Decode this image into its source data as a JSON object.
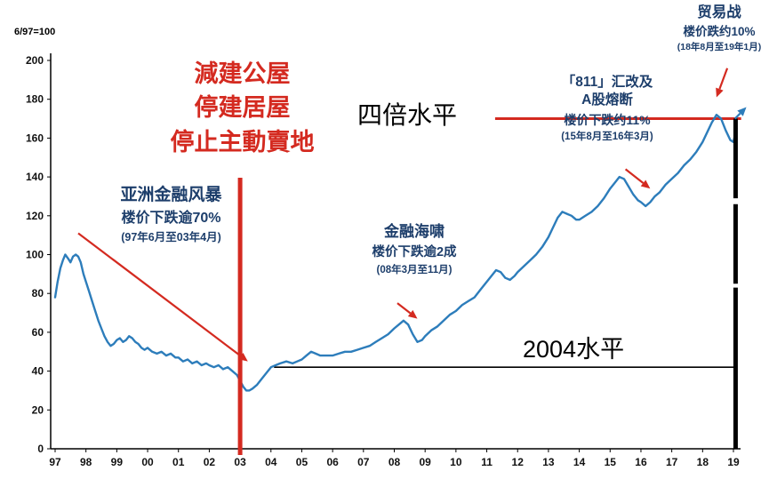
{
  "chart_data": {
    "type": "line",
    "title": "",
    "base_note": "6/97=100",
    "x_ticks": [
      "97",
      "98",
      "99",
      "00",
      "01",
      "02",
      "03",
      "04",
      "05",
      "06",
      "07",
      "08",
      "09",
      "10",
      "11",
      "12",
      "13",
      "14",
      "15",
      "16",
      "17",
      "18",
      "19"
    ],
    "y_ticks": [
      0,
      20,
      40,
      60,
      80,
      100,
      120,
      140,
      160,
      180,
      200
    ],
    "ylim": [
      0,
      200
    ],
    "grid": false,
    "series": [
      {
        "name": "home-price-index",
        "color": "#2d7dbb",
        "points": [
          [
            1997.0,
            78
          ],
          [
            1997.08,
            86
          ],
          [
            1997.17,
            93
          ],
          [
            1997.25,
            97
          ],
          [
            1997.33,
            100
          ],
          [
            1997.42,
            98
          ],
          [
            1997.5,
            96
          ],
          [
            1997.58,
            99
          ],
          [
            1997.67,
            100
          ],
          [
            1997.75,
            99
          ],
          [
            1997.83,
            96
          ],
          [
            1997.92,
            90
          ],
          [
            1998.0,
            86
          ],
          [
            1998.1,
            81
          ],
          [
            1998.2,
            76
          ],
          [
            1998.3,
            71
          ],
          [
            1998.4,
            66
          ],
          [
            1998.5,
            62
          ],
          [
            1998.6,
            58
          ],
          [
            1998.7,
            55
          ],
          [
            1998.8,
            53
          ],
          [
            1998.9,
            54
          ],
          [
            1999.0,
            56
          ],
          [
            1999.1,
            57
          ],
          [
            1999.2,
            55
          ],
          [
            1999.3,
            56
          ],
          [
            1999.4,
            58
          ],
          [
            1999.5,
            57
          ],
          [
            1999.6,
            55
          ],
          [
            1999.7,
            54
          ],
          [
            1999.8,
            52
          ],
          [
            1999.9,
            51
          ],
          [
            2000.0,
            52
          ],
          [
            2000.15,
            50
          ],
          [
            2000.3,
            49
          ],
          [
            2000.45,
            50
          ],
          [
            2000.6,
            48
          ],
          [
            2000.75,
            49
          ],
          [
            2000.9,
            47
          ],
          [
            2001.0,
            47
          ],
          [
            2001.15,
            45
          ],
          [
            2001.3,
            46
          ],
          [
            2001.45,
            44
          ],
          [
            2001.6,
            45
          ],
          [
            2001.75,
            43
          ],
          [
            2001.9,
            44
          ],
          [
            2002.0,
            43
          ],
          [
            2002.15,
            42
          ],
          [
            2002.3,
            43
          ],
          [
            2002.45,
            41
          ],
          [
            2002.6,
            42
          ],
          [
            2002.75,
            40
          ],
          [
            2002.9,
            38
          ],
          [
            2003.0,
            35
          ],
          [
            2003.1,
            32
          ],
          [
            2003.2,
            30
          ],
          [
            2003.3,
            30
          ],
          [
            2003.4,
            31
          ],
          [
            2003.55,
            33
          ],
          [
            2003.7,
            36
          ],
          [
            2003.85,
            39
          ],
          [
            2004.0,
            42
          ],
          [
            2004.15,
            43
          ],
          [
            2004.3,
            44
          ],
          [
            2004.5,
            45
          ],
          [
            2004.7,
            44
          ],
          [
            2004.85,
            45
          ],
          [
            2005.0,
            46
          ],
          [
            2005.15,
            48
          ],
          [
            2005.3,
            50
          ],
          [
            2005.45,
            49
          ],
          [
            2005.6,
            48
          ],
          [
            2005.8,
            48
          ],
          [
            2006.0,
            48
          ],
          [
            2006.2,
            49
          ],
          [
            2006.4,
            50
          ],
          [
            2006.6,
            50
          ],
          [
            2006.8,
            51
          ],
          [
            2007.0,
            52
          ],
          [
            2007.2,
            53
          ],
          [
            2007.4,
            55
          ],
          [
            2007.6,
            57
          ],
          [
            2007.8,
            59
          ],
          [
            2008.0,
            62
          ],
          [
            2008.15,
            64
          ],
          [
            2008.3,
            66
          ],
          [
            2008.45,
            64
          ],
          [
            2008.6,
            59
          ],
          [
            2008.75,
            55
          ],
          [
            2008.9,
            56
          ],
          [
            2009.0,
            58
          ],
          [
            2009.2,
            61
          ],
          [
            2009.4,
            63
          ],
          [
            2009.6,
            66
          ],
          [
            2009.8,
            69
          ],
          [
            2010.0,
            71
          ],
          [
            2010.2,
            74
          ],
          [
            2010.4,
            76
          ],
          [
            2010.6,
            78
          ],
          [
            2010.8,
            82
          ],
          [
            2011.0,
            86
          ],
          [
            2011.15,
            89
          ],
          [
            2011.3,
            92
          ],
          [
            2011.45,
            91
          ],
          [
            2011.6,
            88
          ],
          [
            2011.75,
            87
          ],
          [
            2011.9,
            89
          ],
          [
            2012.0,
            91
          ],
          [
            2012.2,
            94
          ],
          [
            2012.4,
            97
          ],
          [
            2012.6,
            100
          ],
          [
            2012.8,
            104
          ],
          [
            2013.0,
            109
          ],
          [
            2013.15,
            114
          ],
          [
            2013.3,
            119
          ],
          [
            2013.45,
            122
          ],
          [
            2013.6,
            121
          ],
          [
            2013.75,
            120
          ],
          [
            2013.9,
            118
          ],
          [
            2014.0,
            118
          ],
          [
            2014.2,
            120
          ],
          [
            2014.4,
            122
          ],
          [
            2014.6,
            125
          ],
          [
            2014.8,
            129
          ],
          [
            2015.0,
            134
          ],
          [
            2015.15,
            137
          ],
          [
            2015.3,
            140
          ],
          [
            2015.45,
            139
          ],
          [
            2015.6,
            135
          ],
          [
            2015.75,
            131
          ],
          [
            2015.9,
            128
          ],
          [
            2016.0,
            127
          ],
          [
            2016.15,
            125
          ],
          [
            2016.3,
            127
          ],
          [
            2016.45,
            130
          ],
          [
            2016.6,
            132
          ],
          [
            2016.8,
            136
          ],
          [
            2017.0,
            139
          ],
          [
            2017.2,
            142
          ],
          [
            2017.4,
            146
          ],
          [
            2017.6,
            149
          ],
          [
            2017.8,
            153
          ],
          [
            2018.0,
            158
          ],
          [
            2018.15,
            163
          ],
          [
            2018.3,
            168
          ],
          [
            2018.45,
            172
          ],
          [
            2018.6,
            170
          ],
          [
            2018.75,
            164
          ],
          [
            2018.9,
            159
          ],
          [
            2019.0,
            158
          ],
          [
            2019.1,
            165
          ]
        ]
      }
    ],
    "ref_lines": [
      {
        "name": "four-times-level-line",
        "label": "四倍水平",
        "value": 170,
        "from_year": 2011.27,
        "to_year": 2019.25,
        "color": "#d42a20",
        "width": 3
      },
      {
        "name": "level-2004-line",
        "label": "2004水平",
        "value": 42,
        "from_year": 2004.1,
        "to_year": 2019.1,
        "color": "#000000",
        "width": 1.6
      }
    ],
    "event_line": {
      "name": "policy-change-line",
      "year": 2003,
      "color": "#d42a20",
      "width": 5
    },
    "bracket": {
      "name": "range-bracket",
      "year": 2019.07,
      "color": "#000000",
      "width": 5,
      "segments_values": [
        [
          170,
          129
        ],
        [
          126,
          85
        ],
        [
          83,
          0
        ]
      ]
    },
    "arrows": [
      {
        "name": "asian-crisis-arrow",
        "color": "#d42a20",
        "width": 2.2,
        "from": [
          1997.75,
          111
        ],
        "to": [
          2003.25,
          45
        ]
      },
      {
        "name": "tsunami-arrow",
        "color": "#d42a20",
        "width": 2.2,
        "from": [
          2008.1,
          75
        ],
        "to": [
          2008.75,
          67
        ]
      },
      {
        "name": "reform-811-arrow",
        "color": "#d42a20",
        "width": 2.2,
        "from": [
          2015.5,
          144
        ],
        "to": [
          2016.3,
          134
        ]
      },
      {
        "name": "trade-war-arrow",
        "color": "#d42a20",
        "width": 2.2,
        "from": [
          2018.8,
          196
        ],
        "to": [
          2018.45,
          181
        ]
      },
      {
        "name": "rebound-arrow",
        "color": "#2d7dbb",
        "width": 2.2,
        "from": [
          2019.05,
          170
        ],
        "to": [
          2019.42,
          176
        ]
      }
    ]
  },
  "annotations": {
    "policy": {
      "line1": "減建公屋",
      "line2": "停建居屋",
      "line3": "停止主動賣地"
    },
    "asian_crisis": {
      "title": "亚洲金融风暴",
      "subtitle": "楼价下跌逾70%",
      "period": "(97年6月至03年4月)"
    },
    "financial_tsunami": {
      "title": "金融海啸",
      "subtitle": "楼价下跌逾2成",
      "period": "(08年3月至11月)"
    },
    "reform_811": {
      "line1": "「811」汇改及",
      "line2": "A股熔断",
      "subtitle": "楼价下跌约11%",
      "period": "(15年8月至16年3月)"
    },
    "trade_war": {
      "title": "贸易战",
      "subtitle": "楼价跌约10%",
      "period": "(18年8月至19年1月)"
    },
    "four_times": "四倍水平",
    "level_2004": "2004水平"
  },
  "colors": {
    "line_blue": "#2d7dbb",
    "annotation_blue": "#1d3e6b",
    "accent_red": "#d42a20",
    "black": "#000000"
  }
}
